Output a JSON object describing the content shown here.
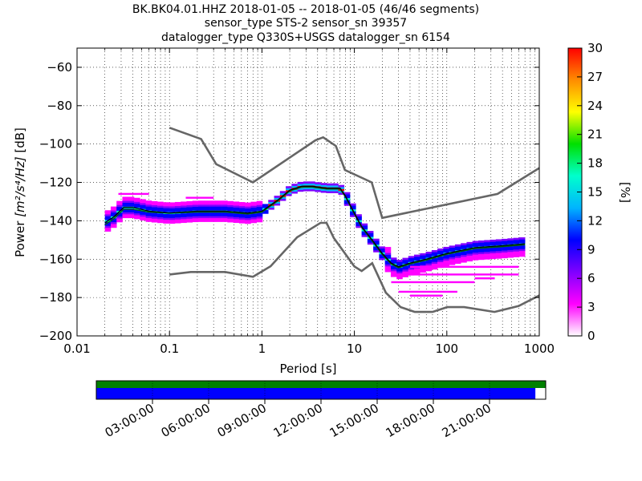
{
  "title_lines": [
    "BK.BK04.01.HHZ   2018-01-05 -- 2018-01-05  (46/46 segments)",
    "sensor_type STS-2 sensor_sn 39357",
    "datalogger_type Q330S+USGS datalogger_sn 6154"
  ],
  "chart_data": {
    "type": "heatmap",
    "subtype": "probabilistic power spectral density",
    "xlabel": "Period [s]",
    "ylabel_prefix": "Power ",
    "ylabel_math": "[m²/s⁴/Hz]",
    "ylabel_suffix": " [dB]",
    "x_scale": "log",
    "xlim": [
      0.01,
      1000
    ],
    "ylim": [
      -200,
      -50
    ],
    "x_ticks": [
      0.01,
      0.1,
      1,
      10,
      100,
      1000
    ],
    "x_tick_labels": [
      "0.01",
      "0.1",
      "1",
      "10",
      "100",
      "1000"
    ],
    "y_ticks": [
      -200,
      -180,
      -160,
      -140,
      -120,
      -100,
      -80,
      -60
    ],
    "y_tick_labels": [
      "−200",
      "−180",
      "−160",
      "−140",
      "−120",
      "−100",
      "−80",
      "−60"
    ],
    "grid": "dotted, minor x and major y",
    "colorbar": {
      "label": "[%]",
      "min": 0,
      "max": 30,
      "ticks": [
        0,
        3,
        6,
        9,
        12,
        15,
        18,
        21,
        24,
        27,
        30
      ],
      "tick_labels": [
        "0",
        "3",
        "6",
        "9",
        "12",
        "15",
        "18",
        "21",
        "24",
        "27",
        "30"
      ],
      "colormap": [
        "#ffffff",
        "#ff00ff",
        "#7f00ff",
        "#0000ff",
        "#00b4ff",
        "#00ffcc",
        "#00e000",
        "#ffff00",
        "#ff8c00",
        "#ff0000"
      ]
    },
    "noise_models": [
      {
        "name": "NHNM",
        "color": "#666666",
        "x": [
          0.1,
          0.22,
          0.32,
          0.8,
          3.8,
          4.6,
          6.3,
          7.9,
          15.4,
          20,
          354,
          1000
        ],
        "y": [
          -91.5,
          -97.4,
          -110.5,
          -120,
          -98,
          -96.5,
          -101,
          -113.5,
          -120,
          -138.5,
          -126,
          -112.5
        ]
      },
      {
        "name": "NLNM",
        "color": "#666666",
        "x": [
          0.1,
          0.17,
          0.4,
          0.8,
          1.24,
          2.4,
          4.3,
          5,
          6,
          10,
          12,
          15.6,
          21.9,
          31.6,
          45,
          70,
          101,
          154,
          328,
          600,
          1000
        ],
        "y": [
          -168,
          -166.7,
          -166.7,
          -169.2,
          -163.7,
          -148.6,
          -141.1,
          -141.1,
          -149,
          -163.8,
          -166.2,
          -162.1,
          -177.5,
          -185,
          -187.5,
          -187.5,
          -185,
          -185,
          -187.5,
          -184.4,
          -178.9
        ]
      }
    ],
    "mode_curve": {
      "name": "mode",
      "color": "#000000",
      "x": [
        0.02,
        0.025,
        0.032,
        0.04,
        0.06,
        0.1,
        0.2,
        0.4,
        0.7,
        1,
        1.5,
        2,
        2.7,
        3.5,
        5,
        7,
        8,
        10,
        12,
        15,
        20,
        25,
        30,
        40,
        60,
        100,
        200,
        400,
        700
      ],
      "y": [
        -141,
        -138,
        -133,
        -133,
        -135,
        -136,
        -135,
        -135,
        -136,
        -135,
        -129,
        -124,
        -122,
        -122,
        -123,
        -123,
        -127,
        -136,
        -143,
        -149,
        -157,
        -162,
        -164,
        -162,
        -160,
        -157,
        -154,
        -153,
        -152
      ]
    },
    "mean_curve": {
      "name": "mean",
      "color": "#006400",
      "x": [
        0.02,
        0.025,
        0.032,
        0.04,
        0.06,
        0.1,
        0.2,
        0.4,
        0.7,
        1,
        1.5,
        2,
        2.7,
        3.5,
        5,
        7,
        8,
        10,
        12,
        15,
        20,
        25,
        30,
        40,
        60,
        100,
        200,
        400,
        700
      ],
      "y": [
        -142,
        -139,
        -134,
        -134,
        -135.5,
        -136,
        -135.5,
        -135.5,
        -136.5,
        -135.5,
        -129.5,
        -124.5,
        -122.5,
        -122.5,
        -123.5,
        -123.5,
        -127.5,
        -136.5,
        -143.5,
        -149.5,
        -157.5,
        -162.5,
        -164.5,
        -162.5,
        -160.5,
        -157.5,
        -154.5,
        -153.5,
        -152.5
      ]
    },
    "outlier_bands": [
      {
        "x": [
          0.028,
          0.06
        ],
        "y": -126,
        "pct": 3
      },
      {
        "x": [
          0.15,
          0.3
        ],
        "y": -128,
        "pct": 4
      },
      {
        "x": [
          40,
          600
        ],
        "y": -164,
        "pct": 2
      },
      {
        "x": [
          25,
          200
        ],
        "y": -172,
        "pct": 2
      },
      {
        "x": [
          30,
          130
        ],
        "y": -177,
        "pct": 2
      },
      {
        "x": [
          40,
          90
        ],
        "y": -179,
        "pct": 3
      },
      {
        "x": [
          200,
          330
        ],
        "y": -170,
        "pct": 3
      },
      {
        "x": [
          30,
          600
        ],
        "y": -168,
        "pct": 2
      }
    ]
  },
  "timeline": {
    "tick_labels": [
      "03:00:00",
      "06:00:00",
      "09:00:00",
      "12:00:00",
      "15:00:00",
      "18:00:00",
      "21:00:00"
    ],
    "tick_fractions": [
      0.125,
      0.25,
      0.375,
      0.5,
      0.625,
      0.75,
      0.875
    ],
    "coverage_green_fraction": 1.0,
    "coverage_blue_fraction": 0.977,
    "colors": {
      "green": "#008000",
      "blue": "#0000ff"
    }
  }
}
